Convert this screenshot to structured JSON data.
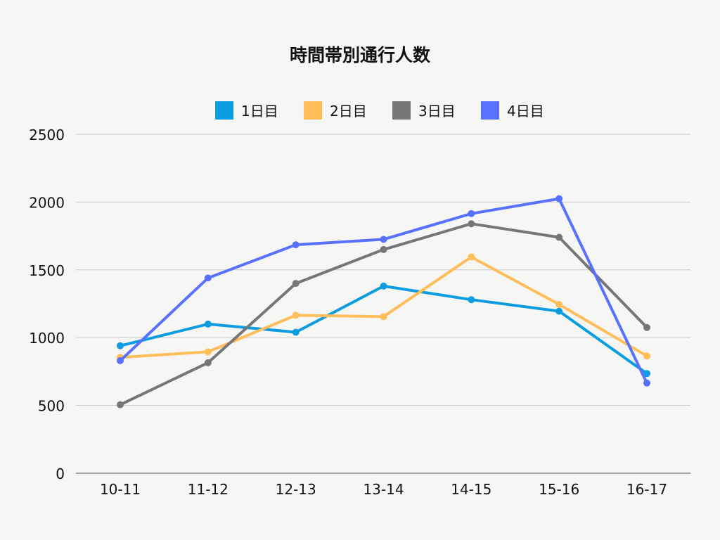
{
  "chart_data": {
    "type": "line",
    "title": "時間帯別通行人数",
    "categories": [
      "10-11",
      "11-12",
      "12-13",
      "13-14",
      "14-15",
      "15-16",
      "16-17"
    ],
    "ylim": [
      0,
      2500
    ],
    "yticks": [
      0,
      500,
      1000,
      1500,
      2000,
      2500
    ],
    "grid": true,
    "legend_position": "top",
    "series": [
      {
        "name": "1日目",
        "color": "#0b9de0",
        "values": [
          940,
          1100,
          1040,
          1380,
          1280,
          1195,
          735
        ]
      },
      {
        "name": "2日目",
        "color": "#ffbe5a",
        "values": [
          855,
          895,
          1165,
          1155,
          1595,
          1245,
          865
        ]
      },
      {
        "name": "3日目",
        "color": "#767676",
        "values": [
          505,
          815,
          1400,
          1650,
          1840,
          1740,
          1075
        ]
      },
      {
        "name": "4日目",
        "color": "#5872ff",
        "values": [
          830,
          1440,
          1685,
          1725,
          1915,
          2025,
          665
        ]
      }
    ]
  }
}
